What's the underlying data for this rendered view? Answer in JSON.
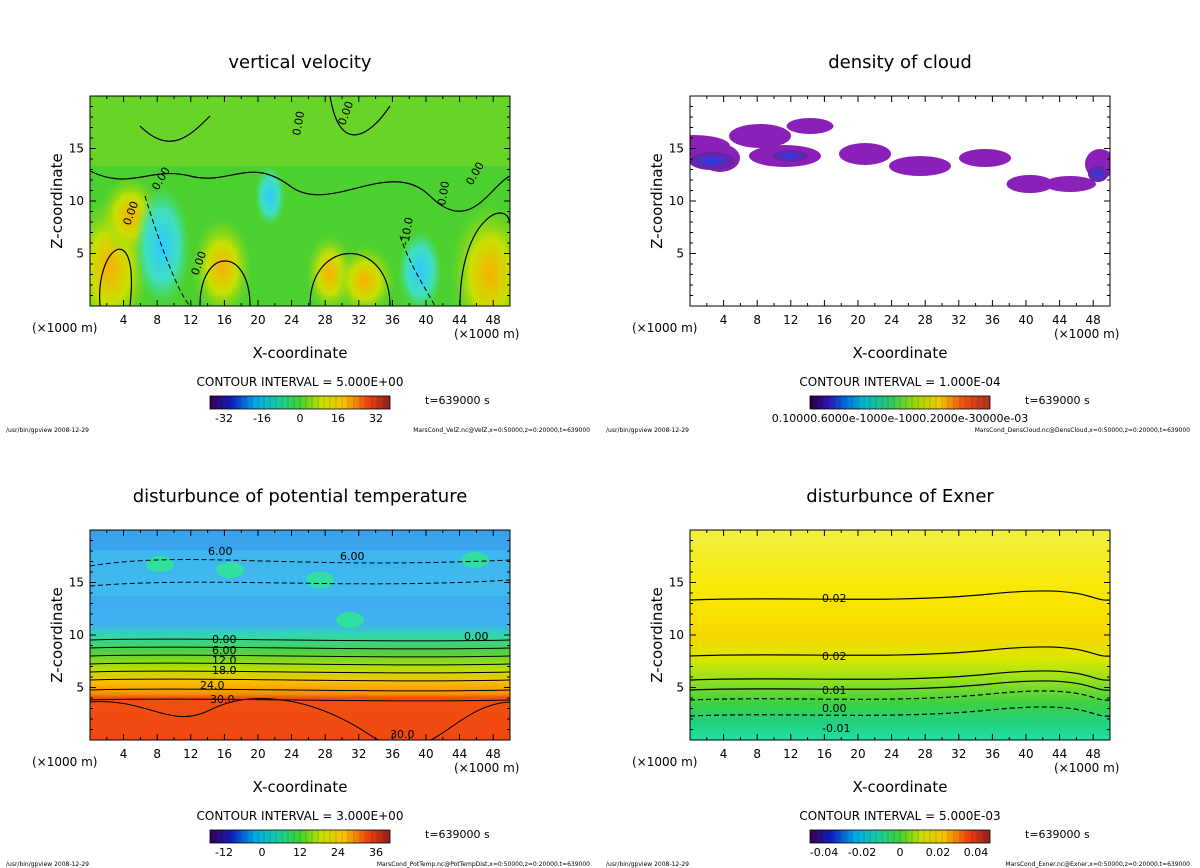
{
  "chart_data": [
    {
      "type": "heatmap",
      "title": "vertical velocity",
      "xlabel": "X-coordinate",
      "ylabel": "Z-coordinate",
      "x_unit": "(×1000 m)",
      "xlim": [
        0,
        50
      ],
      "ylim": [
        0,
        20
      ],
      "x_ticks": [
        "4",
        "8",
        "12",
        "16",
        "20",
        "24",
        "28",
        "32",
        "36",
        "40",
        "44",
        "48"
      ],
      "y_ticks": [
        "5",
        "10",
        "15"
      ],
      "contour_interval": "CONTOUR INTERVAL = 5.000E+00",
      "time": "t=639000 s",
      "colorbar_ticks": [
        "-32",
        "-16",
        "0",
        "16",
        "32"
      ],
      "contour_labels": [
        "0.00",
        "0.00",
        "0.00",
        "0.00",
        "0.00",
        "0.00",
        "0.00",
        "-10.0"
      ],
      "footer_left": "/usr/bin/gpview  2008-12-29",
      "footer_right": "MarsCond_VelZ.nc@VelZ,x=0:50000,z=0:20000,t=639000"
    },
    {
      "type": "heatmap",
      "title": "density of cloud",
      "xlabel": "X-coordinate",
      "ylabel": "Z-coordinate",
      "x_unit": "(×1000 m)",
      "xlim": [
        0,
        50
      ],
      "ylim": [
        0,
        20
      ],
      "x_ticks": [
        "4",
        "8",
        "12",
        "16",
        "20",
        "24",
        "28",
        "32",
        "36",
        "40",
        "44",
        "48"
      ],
      "y_ticks": [
        "5",
        "10",
        "15"
      ],
      "contour_interval": "CONTOUR INTERVAL = 1.000E-04",
      "time": "t=639000 s",
      "colorbar_ticks": [
        "0.10000E-05",
        "0.1000E-04",
        "0.1000E-03",
        "0.2000E-03",
        "0.3000E-03"
      ],
      "colorbar_tick_text": "0.10000.6000e-1000e-1000.2000e-30000e-03",
      "footer_left": "/usr/bin/gpview  2008-12-29",
      "footer_right": "MarsCond_DensCloud.nc@DensCloud,x=0:50000,z=0:20000,t=639000"
    },
    {
      "type": "heatmap",
      "title": "disturbunce of potential temperature",
      "xlabel": "X-coordinate",
      "ylabel": "Z-coordinate",
      "x_unit": "(×1000 m)",
      "xlim": [
        0,
        50
      ],
      "ylim": [
        0,
        20
      ],
      "x_ticks": [
        "4",
        "8",
        "12",
        "16",
        "20",
        "24",
        "28",
        "32",
        "36",
        "40",
        "44",
        "48"
      ],
      "y_ticks": [
        "5",
        "10",
        "15"
      ],
      "contour_interval": "CONTOUR INTERVAL = 3.000E+00",
      "time": "t=639000 s",
      "colorbar_ticks": [
        "-12",
        "0",
        "12",
        "24",
        "36"
      ],
      "contour_labels": [
        "6.00",
        "6.00",
        "0.00",
        "0.00",
        "6.00",
        "12.0",
        "18.0",
        "24.0",
        "30.0",
        "30.0"
      ],
      "footer_left": "/usr/bin/gpview  2008-12-29",
      "footer_right": "MarsCond_PotTemp.nc@PotTempDist,x=0:50000,z=0:20000,t=639000"
    },
    {
      "type": "heatmap",
      "title": "disturbunce of Exner",
      "xlabel": "X-coordinate",
      "ylabel": "Z-coordinate",
      "x_unit": "(×1000 m)",
      "xlim": [
        0,
        50
      ],
      "ylim": [
        0,
        20
      ],
      "x_ticks": [
        "4",
        "8",
        "12",
        "16",
        "20",
        "24",
        "28",
        "32",
        "36",
        "40",
        "44",
        "48"
      ],
      "y_ticks": [
        "5",
        "10",
        "15"
      ],
      "contour_interval": "CONTOUR INTERVAL = 5.000E-03",
      "time": "t=639000 s",
      "colorbar_ticks": [
        "-0.04",
        "-0.02",
        "0",
        "0.02",
        "0.04"
      ],
      "contour_labels": [
        "0.02",
        "0.02",
        "0.01",
        "0.00",
        "-0.01"
      ],
      "footer_left": "/usr/bin/gpview  2008-12-29",
      "footer_right": "MarsCond_Exner.nc@Exner,x=0:50000,z=0:20000,t=639000"
    }
  ]
}
